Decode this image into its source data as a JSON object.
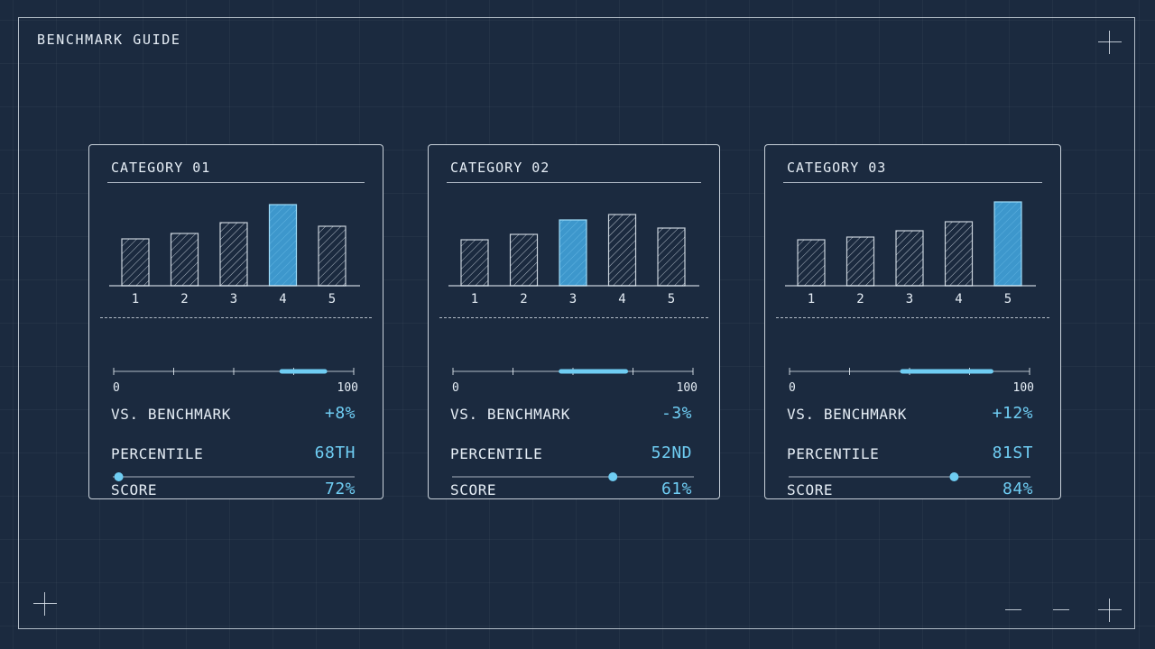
{
  "page": {
    "title": "BENCHMARK GUIDE"
  },
  "colors": {
    "background": "#1b2a3f",
    "accent": "#6fcdf3",
    "highlight_bar": "#3d97cc",
    "line": "#e6eef6"
  },
  "cards": [
    {
      "title": "CATEGORY 01",
      "chart_data": {
        "type": "bar",
        "categories": [
          "1",
          "2",
          "3",
          "4",
          "5"
        ],
        "values": [
          52,
          58,
          70,
          90,
          66
        ],
        "highlight_index": 3,
        "ylim": [
          0,
          100
        ]
      },
      "score_label": "SCORE",
      "score_value": "72%",
      "score_range": {
        "start": 70,
        "end": 88
      },
      "scale_min": "0",
      "scale_max": "100",
      "benchmark_label": "VS. BENCHMARK",
      "benchmark_value": "+8%",
      "percentile_label": "PERCENTILE",
      "percentile_value": "68TH",
      "percentile_marker": 0.01
    },
    {
      "title": "CATEGORY 02",
      "chart_data": {
        "type": "bar",
        "categories": [
          "1",
          "2",
          "3",
          "4",
          "5"
        ],
        "values": [
          51,
          57,
          73,
          79,
          64
        ],
        "highlight_index": 2,
        "ylim": [
          0,
          100
        ]
      },
      "score_label": "SCORE",
      "score_value": "61%",
      "score_range": {
        "start": 45,
        "end": 72
      },
      "scale_min": "0",
      "scale_max": "100",
      "benchmark_label": "VS. BENCHMARK",
      "benchmark_value": "-3%",
      "percentile_label": "PERCENTILE",
      "percentile_value": "52ND",
      "percentile_marker": 0.67
    },
    {
      "title": "CATEGORY 03",
      "chart_data": {
        "type": "bar",
        "categories": [
          "1",
          "2",
          "3",
          "4",
          "5"
        ],
        "values": [
          51,
          54,
          61,
          71,
          93
        ],
        "highlight_index": 4,
        "ylim": [
          0,
          100
        ]
      },
      "score_label": "SCORE",
      "score_value": "84%",
      "score_range": {
        "start": 47,
        "end": 84
      },
      "scale_min": "0",
      "scale_max": "100",
      "benchmark_label": "VS. BENCHMARK",
      "benchmark_value": "+12%",
      "percentile_label": "PERCENTILE",
      "percentile_value": "81ST",
      "percentile_marker": 0.69
    }
  ]
}
